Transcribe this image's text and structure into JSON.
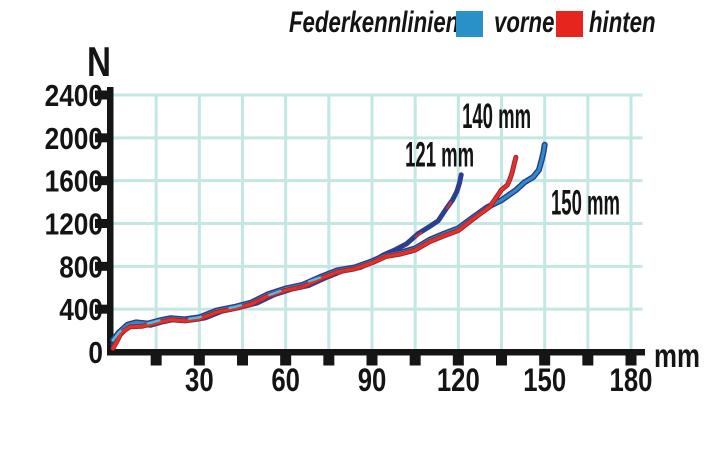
{
  "legend": {
    "title": "Federkennlinien:",
    "items": [
      {
        "label": "vorne",
        "color": "#2a90c8"
      },
      {
        "label": "hinten",
        "color": "#e6251f"
      }
    ]
  },
  "chart_data": {
    "type": "line",
    "title": "Federkennlinien",
    "xlabel": "mm",
    "ylabel": "N",
    "xlim": [
      0,
      186
    ],
    "ylim": [
      0,
      2400
    ],
    "grid": true,
    "grid_color": "#c3e7e2",
    "axis_color": "#151515",
    "x_tick_step_mm": 15,
    "y_tick_step_n": 400,
    "x_tick_labels": [
      "30",
      "60",
      "90",
      "120",
      "150",
      "180"
    ],
    "y_tick_labels": [
      "2400",
      "2000",
      "1600",
      "1200",
      "800",
      "400",
      "0"
    ],
    "annotations": [
      {
        "label": "140 mm",
        "x_mm": 121.3,
        "y_n": 2090
      },
      {
        "label": "121 mm",
        "x_mm": 101.5,
        "y_n": 1733
      },
      {
        "label": "150 mm",
        "x_mm": 152.2,
        "y_n": 1282
      }
    ],
    "series": [
      {
        "name": "vorne (150 mm)",
        "color": "#2d8cc8",
        "shadow": "#2c3a88",
        "highlight": "#55bede",
        "end_travel_mm": 150,
        "points": [
          [
            0,
            110
          ],
          [
            2,
            195
          ],
          [
            5,
            245
          ],
          [
            8,
            268
          ],
          [
            12,
            280
          ],
          [
            16,
            292
          ],
          [
            20,
            302
          ],
          [
            25,
            314
          ],
          [
            30,
            330
          ],
          [
            36,
            372
          ],
          [
            42,
            422
          ],
          [
            48,
            474
          ],
          [
            54,
            530
          ],
          [
            60,
            587
          ],
          [
            66,
            642
          ],
          [
            72,
            696
          ],
          [
            78,
            750
          ],
          [
            84,
            802
          ],
          [
            90,
            852
          ],
          [
            95,
            892
          ],
          [
            100,
            934
          ],
          [
            105,
            980
          ],
          [
            110,
            1036
          ],
          [
            115,
            1100
          ],
          [
            120,
            1170
          ],
          [
            125,
            1250
          ],
          [
            130,
            1340
          ],
          [
            135,
            1430
          ],
          [
            140,
            1515
          ],
          [
            143,
            1570
          ],
          [
            146,
            1640
          ],
          [
            148,
            1700
          ],
          [
            149,
            1800
          ],
          [
            149.6,
            1868
          ],
          [
            150,
            1935
          ]
        ]
      },
      {
        "name": "hinten (140 mm)",
        "color": "#e2332b",
        "shadow": "#9c2733",
        "end_travel_mm": 140,
        "points": [
          [
            0,
            35
          ],
          [
            1,
            95
          ],
          [
            3,
            175
          ],
          [
            6,
            228
          ],
          [
            10,
            254
          ],
          [
            15,
            270
          ],
          [
            20,
            287
          ],
          [
            25,
            300
          ],
          [
            30,
            316
          ],
          [
            36,
            357
          ],
          [
            42,
            407
          ],
          [
            48,
            460
          ],
          [
            54,
            515
          ],
          [
            60,
            570
          ],
          [
            66,
            626
          ],
          [
            72,
            681
          ],
          [
            78,
            735
          ],
          [
            84,
            788
          ],
          [
            90,
            838
          ],
          [
            95,
            878
          ],
          [
            100,
            920
          ],
          [
            105,
            964
          ],
          [
            110,
            1018
          ],
          [
            115,
            1080
          ],
          [
            120,
            1150
          ],
          [
            124,
            1212
          ],
          [
            128,
            1288
          ],
          [
            131,
            1370
          ],
          [
            133,
            1438
          ],
          [
            135,
            1500
          ],
          [
            137,
            1565
          ],
          [
            138,
            1618
          ],
          [
            138.8,
            1685
          ],
          [
            139.4,
            1758
          ],
          [
            140,
            1818
          ]
        ]
      },
      {
        "name": "Kennlinie 121 mm",
        "color": "#2c3f8e",
        "shadow": "#232d6e",
        "speckle": "#cf2d33",
        "end_travel_mm": 121,
        "points": [
          [
            0,
            70
          ],
          [
            2,
            162
          ],
          [
            5,
            220
          ],
          [
            9,
            250
          ],
          [
            13,
            264
          ],
          [
            17,
            278
          ],
          [
            22,
            294
          ],
          [
            27,
            308
          ],
          [
            32,
            326
          ],
          [
            38,
            368
          ],
          [
            44,
            418
          ],
          [
            50,
            470
          ],
          [
            56,
            524
          ],
          [
            62,
            580
          ],
          [
            68,
            636
          ],
          [
            74,
            691
          ],
          [
            80,
            746
          ],
          [
            86,
            802
          ],
          [
            90,
            846
          ],
          [
            94,
            892
          ],
          [
            98,
            958
          ],
          [
            102,
            1022
          ],
          [
            106,
            1092
          ],
          [
            110,
            1168
          ],
          [
            113,
            1240
          ],
          [
            116,
            1340
          ],
          [
            118,
            1420
          ],
          [
            119.5,
            1500
          ],
          [
            120.4,
            1578
          ],
          [
            121,
            1655
          ]
        ]
      }
    ]
  }
}
